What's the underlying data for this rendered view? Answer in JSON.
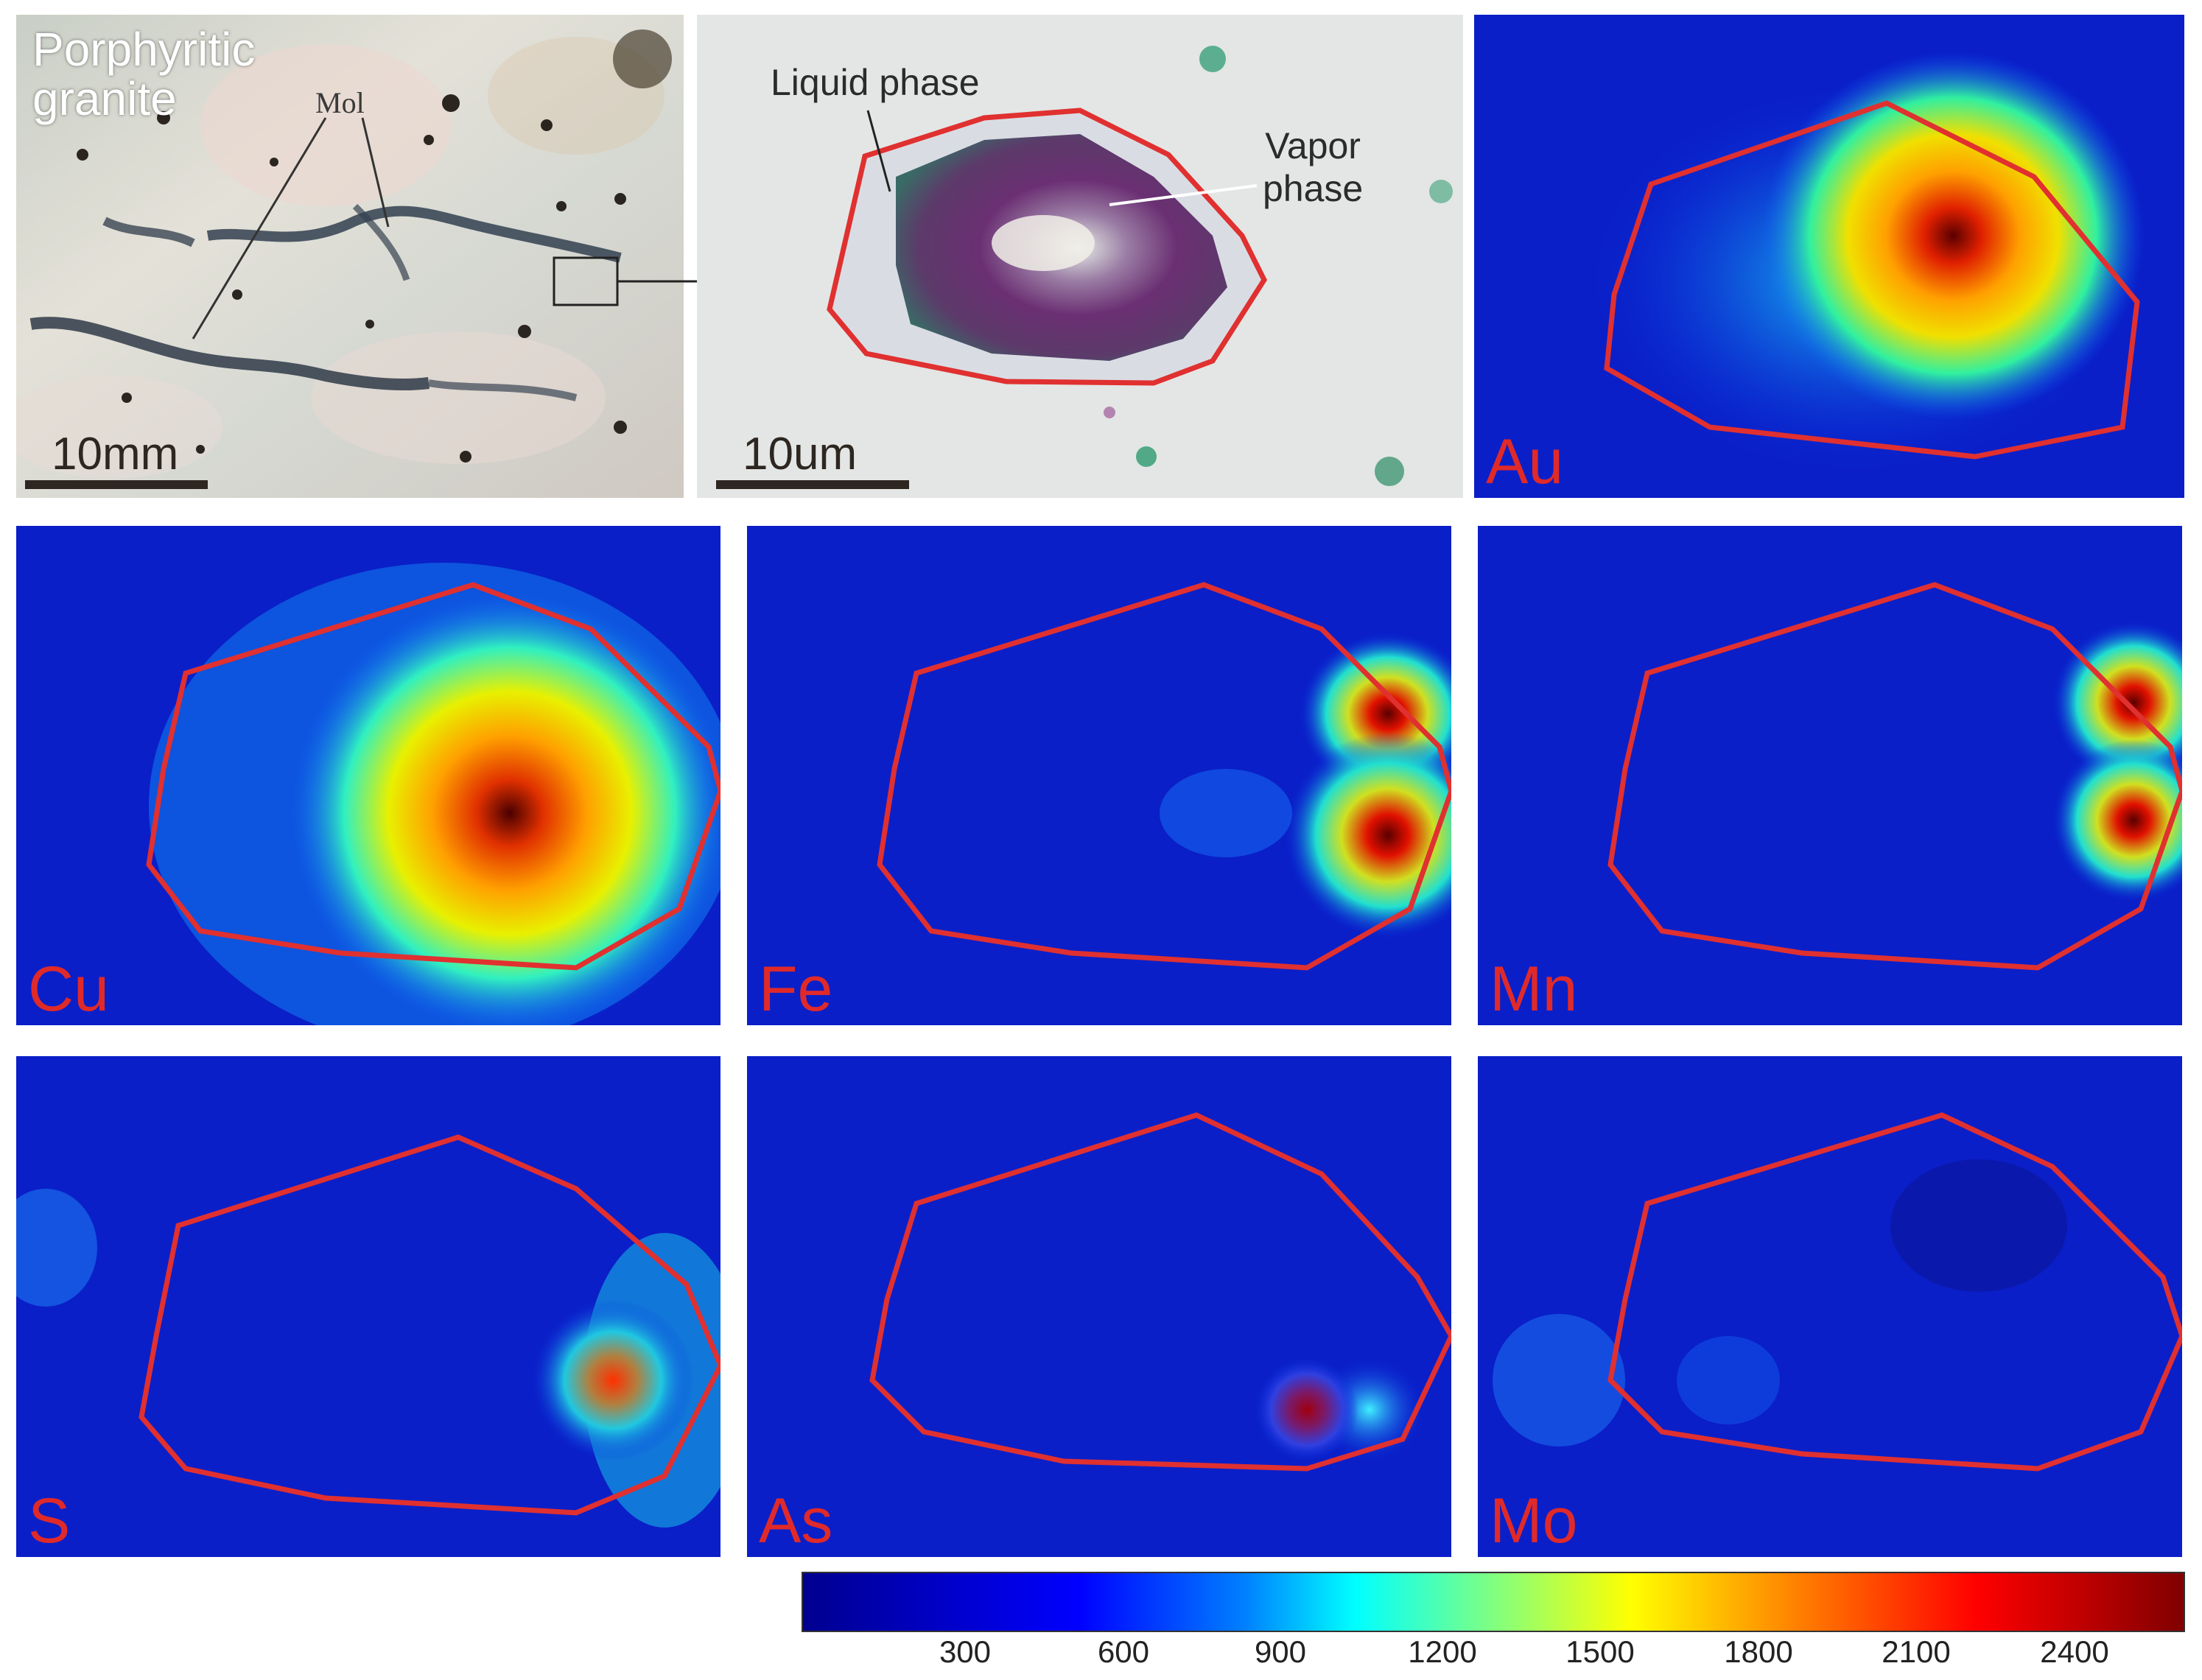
{
  "photo_panel": {
    "rock_label_line1": "Porphyritic",
    "rock_label_line2": "granite",
    "mineral_label": "Mol",
    "scale_label": "10mm"
  },
  "inclusion_panel": {
    "liquid_label": "Liquid phase",
    "vapor_label_line1": "Vapor",
    "vapor_label_line2": "phase",
    "scale_label": "10um"
  },
  "element_maps": [
    {
      "element": "Au"
    },
    {
      "element": "Cu"
    },
    {
      "element": "Fe"
    },
    {
      "element": "Mn"
    },
    {
      "element": "S"
    },
    {
      "element": "As"
    },
    {
      "element": "Mo"
    }
  ],
  "colorbar": {
    "ticks": [
      "300",
      "600",
      "900",
      "1200",
      "1500",
      "1800",
      "2100",
      "2400"
    ],
    "colormap": "jet",
    "colors": [
      "#00008f",
      "#0000ff",
      "#00ffff",
      "#ffff00",
      "#ff0000",
      "#800000"
    ]
  },
  "colors": {
    "outline": "#e03030",
    "map_background": "#0a1fc8",
    "label": "#e02a2a"
  }
}
